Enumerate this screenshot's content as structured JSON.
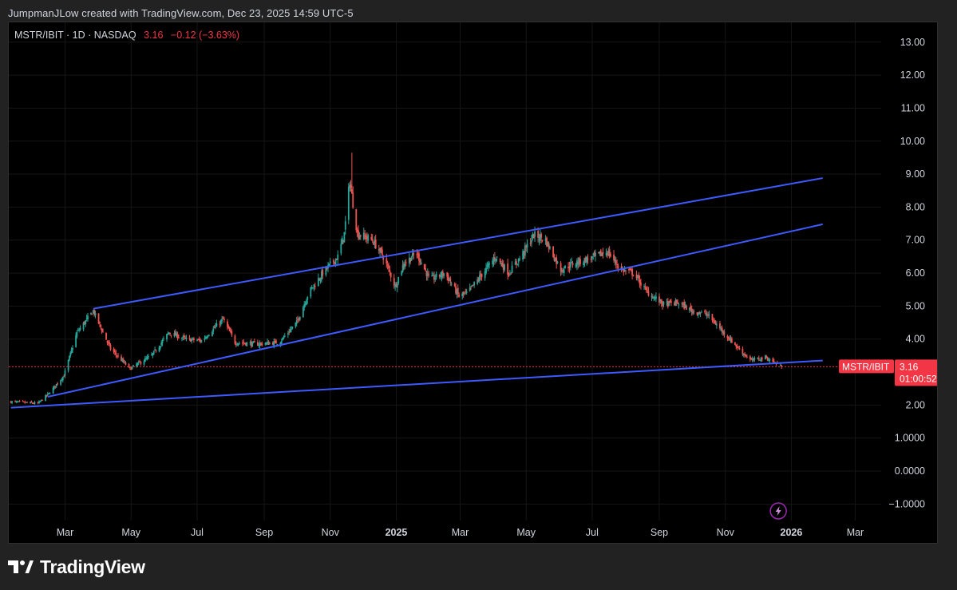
{
  "header_text": "JumpmanJLow created with TradingView.com, Dec 23, 2025 14:59 UTC-5",
  "footer_brand": "TradingView",
  "colors": {
    "up": "#26a69a",
    "down": "#ef5350",
    "trendline": "#3d5afe",
    "price_line": "#f23645",
    "grid": "#161616",
    "axis_text": "#d1d4dc",
    "background": "#000000"
  },
  "chart_data": {
    "type": "candlestick",
    "symbol_line": {
      "symbol": "MSTR/IBIT · 1D · NASDAQ",
      "last": "3.16",
      "change": "−0.12 (−3.63%)"
    },
    "price_label": {
      "symbol": "MSTR/IBIT",
      "value": "3.16",
      "countdown": "01:00:52"
    },
    "last_price": 3.16,
    "x_ticks": [
      {
        "label": "Mar",
        "date": "2024-03-01"
      },
      {
        "label": "May",
        "date": "2024-05-01"
      },
      {
        "label": "Jul",
        "date": "2024-07-01"
      },
      {
        "label": "Sep",
        "date": "2024-09-01"
      },
      {
        "label": "Nov",
        "date": "2024-11-01"
      },
      {
        "label": "2025",
        "date": "2025-01-01",
        "bold": true
      },
      {
        "label": "Mar",
        "date": "2025-03-01"
      },
      {
        "label": "May",
        "date": "2025-05-01"
      },
      {
        "label": "Jul",
        "date": "2025-07-01"
      },
      {
        "label": "Sep",
        "date": "2025-09-01"
      },
      {
        "label": "Nov",
        "date": "2025-11-01"
      },
      {
        "label": "2026",
        "date": "2026-01-01",
        "bold": true
      },
      {
        "label": "Mar",
        "date": "2026-03-01"
      }
    ],
    "y_ticks": [
      {
        "label": "13.00",
        "value": 13
      },
      {
        "label": "12.00",
        "value": 12
      },
      {
        "label": "11.00",
        "value": 11
      },
      {
        "label": "10.00",
        "value": 10
      },
      {
        "label": "9.00",
        "value": 9
      },
      {
        "label": "8.00",
        "value": 8
      },
      {
        "label": "7.00",
        "value": 7
      },
      {
        "label": "6.00",
        "value": 6
      },
      {
        "label": "5.00",
        "value": 5
      },
      {
        "label": "4.00",
        "value": 4
      },
      {
        "label": "2.00",
        "value": 2
      },
      {
        "label": "1.0000",
        "value": 1
      },
      {
        "label": "0.0000",
        "value": 0
      },
      {
        "label": "−1.0000",
        "value": -1
      }
    ],
    "ylim": [
      -1.5,
      13.6
    ],
    "xlim": [
      "2024-01-09",
      "2026-03-25"
    ],
    "trendlines": [
      {
        "name": "upper-channel-top",
        "x1": "2024-03-27",
        "y1": 4.92,
        "x2": "2026-01-30",
        "y2": 8.88
      },
      {
        "name": "upper-channel-bottom",
        "x1": "2024-02-14",
        "y1": 2.25,
        "x2": "2026-01-30",
        "y2": 7.48
      },
      {
        "name": "base-support",
        "x1": "2024-01-11",
        "y1": 1.92,
        "x2": "2026-01-30",
        "y2": 3.35
      }
    ],
    "price_anchors": [
      [
        "2024-01-11",
        2.1
      ],
      [
        "2024-02-05",
        2.05
      ],
      [
        "2024-02-15",
        2.35
      ],
      [
        "2024-02-29",
        2.9
      ],
      [
        "2024-03-12",
        4.2
      ],
      [
        "2024-03-27",
        4.85
      ],
      [
        "2024-04-12",
        3.7
      ],
      [
        "2024-04-30",
        3.1
      ],
      [
        "2024-05-20",
        3.5
      ],
      [
        "2024-06-05",
        4.2
      ],
      [
        "2024-06-20",
        4.0
      ],
      [
        "2024-07-05",
        3.95
      ],
      [
        "2024-07-25",
        4.6
      ],
      [
        "2024-08-05",
        3.9
      ],
      [
        "2024-08-25",
        3.85
      ],
      [
        "2024-09-15",
        3.9
      ],
      [
        "2024-10-01",
        4.5
      ],
      [
        "2024-10-12",
        5.4
      ],
      [
        "2024-10-25",
        6.0
      ],
      [
        "2024-11-08",
        6.5
      ],
      [
        "2024-11-14",
        7.2
      ],
      [
        "2024-11-19",
        8.8
      ],
      [
        "2024-11-26",
        7.2
      ],
      [
        "2024-12-10",
        7.0
      ],
      [
        "2024-12-20",
        6.5
      ],
      [
        "2024-12-31",
        5.6
      ],
      [
        "2025-01-08",
        6.3
      ],
      [
        "2025-01-20",
        6.6
      ],
      [
        "2025-02-01",
        5.8
      ],
      [
        "2025-02-15",
        6.0
      ],
      [
        "2025-02-28",
        5.3
      ],
      [
        "2025-03-08",
        5.4
      ],
      [
        "2025-03-22",
        6.0
      ],
      [
        "2025-04-03",
        6.5
      ],
      [
        "2025-04-15",
        6.0
      ],
      [
        "2025-04-26",
        6.5
      ],
      [
        "2025-05-08",
        7.15
      ],
      [
        "2025-05-18",
        7.05
      ],
      [
        "2025-06-02",
        6.1
      ],
      [
        "2025-06-14",
        6.3
      ],
      [
        "2025-06-30",
        6.45
      ],
      [
        "2025-07-15",
        6.65
      ],
      [
        "2025-07-28",
        6.1
      ],
      [
        "2025-08-08",
        6.0
      ],
      [
        "2025-08-20",
        5.45
      ],
      [
        "2025-09-05",
        5.05
      ],
      [
        "2025-09-18",
        5.1
      ],
      [
        "2025-10-02",
        4.85
      ],
      [
        "2025-10-15",
        4.75
      ],
      [
        "2025-11-01",
        4.15
      ],
      [
        "2025-11-15",
        3.65
      ],
      [
        "2025-11-25",
        3.35
      ],
      [
        "2025-12-08",
        3.45
      ],
      [
        "2025-12-16",
        3.3
      ],
      [
        "2025-12-23",
        3.16
      ]
    ]
  }
}
